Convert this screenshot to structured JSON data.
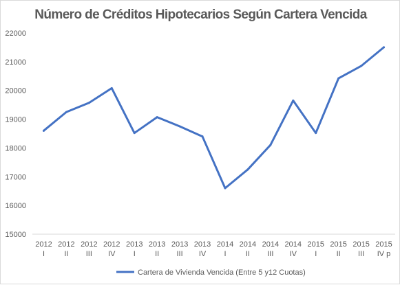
{
  "chart_data": {
    "type": "line",
    "title": "Número de Créditos Hipotecarios Según Cartera Vencida",
    "categories": [
      [
        "2012",
        "I"
      ],
      [
        "2012",
        "II"
      ],
      [
        "2012",
        "III"
      ],
      [
        "2012",
        "IV"
      ],
      [
        "2013",
        "I"
      ],
      [
        "2013",
        "II"
      ],
      [
        "2013",
        "III"
      ],
      [
        "2013",
        "IV"
      ],
      [
        "2014",
        "I"
      ],
      [
        "2014",
        "II"
      ],
      [
        "2014",
        "III"
      ],
      [
        "2014",
        "IV"
      ],
      [
        "2015",
        "I"
      ],
      [
        "2015",
        "II"
      ],
      [
        "2015",
        "III"
      ],
      [
        "2015",
        "IV p"
      ]
    ],
    "series": [
      {
        "name": "Cartera de Vivienda Vencida (Entre 5 y12 Cuotas)",
        "color": "#4472c4",
        "values": [
          18600,
          19250,
          19570,
          20080,
          18520,
          19070,
          18750,
          18400,
          16600,
          17250,
          18100,
          19650,
          18520,
          20420,
          20850,
          21500
        ]
      }
    ],
    "y_ticks": [
      "15000",
      "16000",
      "17000",
      "18000",
      "19000",
      "20000",
      "21000",
      "22000"
    ],
    "ylim": [
      15000,
      22000
    ],
    "grid": false,
    "legend_position": "bottom"
  }
}
